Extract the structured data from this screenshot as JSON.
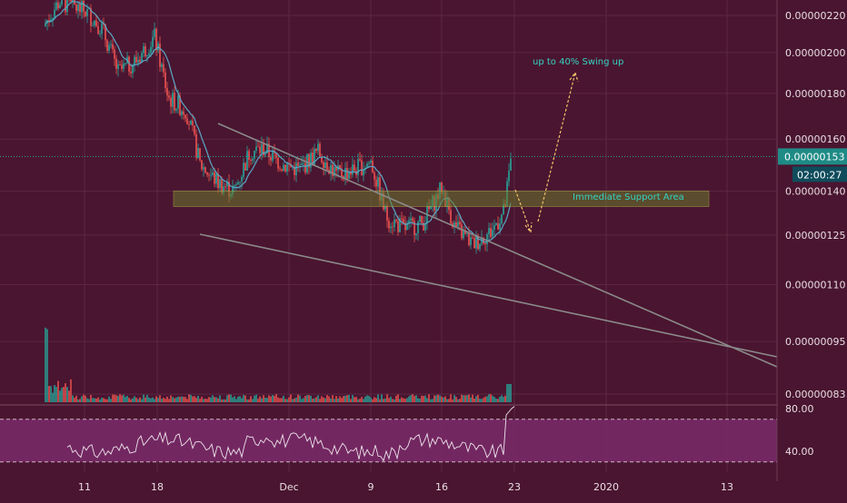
{
  "chart_data": {
    "type": "candlestick",
    "price_axis": {
      "labels": [
        "0.00000220",
        "0.00000200",
        "0.00000180",
        "0.00000160",
        "0.00000140",
        "0.00000125",
        "0.00000110",
        "0.00000095",
        "0.00000083"
      ],
      "values": [
        220,
        200,
        180,
        160,
        140,
        125,
        110,
        95,
        83
      ],
      "scale": "log"
    },
    "last_price": {
      "label": "0.00000153",
      "value": 153
    },
    "countdown": {
      "label": "02:00:27"
    },
    "time_axis": {
      "labels": [
        "11",
        "18",
        "Dec",
        "9",
        "16",
        "23",
        "2020",
        "13"
      ]
    },
    "rsi": {
      "labels": [
        "80.00",
        "40.00"
      ],
      "upper": 70,
      "lower": 30
    },
    "annotations": {
      "support": "Immediate Support Area",
      "target": "up to 40% Swing up"
    },
    "colors": {
      "background": "#4a1530",
      "up_candle": "#26a69a",
      "down_candle": "#ef5350",
      "moving_average": "#5aa9c7",
      "wedge_line": "#8a8a8a",
      "support_zone": "#6a7a2c",
      "annotation_text": "#34d3c3",
      "arrow": "#f2c06a",
      "rsi_band": "#7a2a6a",
      "price_tag_current": "#1f8b86",
      "price_tag_timer": "#0f4c5c"
    }
  }
}
